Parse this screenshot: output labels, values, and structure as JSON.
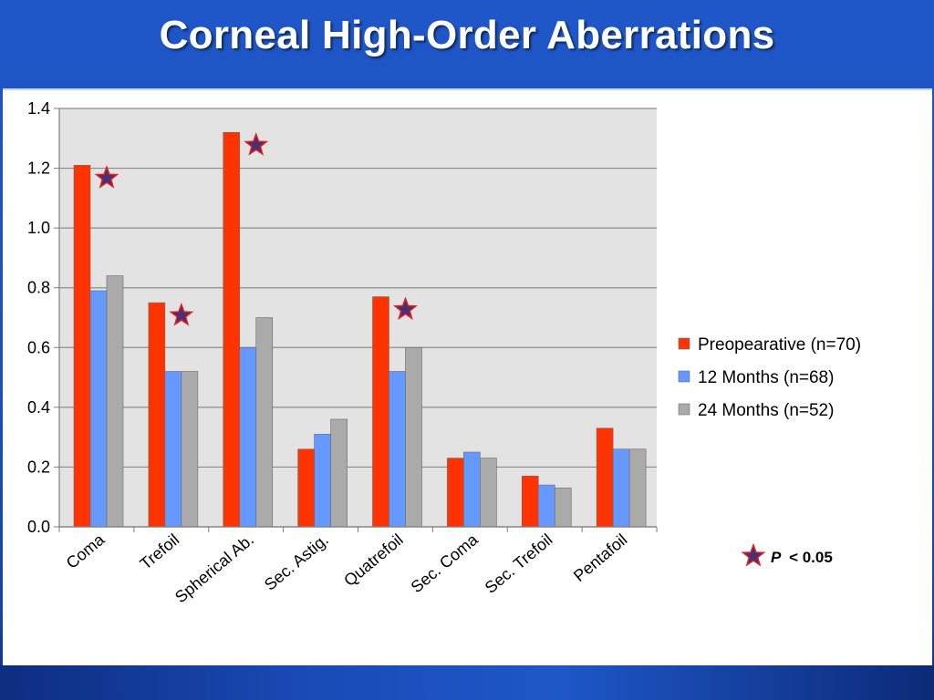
{
  "slide": {
    "title": "Corneal High-Order Aberrations"
  },
  "colors": {
    "preop": "#ff3300",
    "months12": "#6699ff",
    "months24": "#aaaaaa",
    "plot_background": "#e3e3e3",
    "star_fill": "#4a2f73",
    "star_stroke": "#e02020"
  },
  "chart_data": {
    "type": "bar",
    "title": "",
    "xlabel": "",
    "ylabel": "",
    "ylim": [
      0,
      1.4
    ],
    "yticks": [
      "0.0",
      "0.2",
      "0.4",
      "0.6",
      "0.8",
      "1.0",
      "1.2",
      "1.4"
    ],
    "grid": true,
    "legend_position": "right",
    "categories": [
      "Coma",
      "Trefoil",
      "Spherical Ab.",
      "Sec. Astig.",
      "Quatrefoil",
      "Sec. Coma",
      "Sec. Trefoil",
      "Pentafoil"
    ],
    "series": [
      {
        "name": "Preopearative (n=70)",
        "values": [
          1.21,
          0.75,
          1.32,
          0.26,
          0.77,
          0.23,
          0.17,
          0.33
        ]
      },
      {
        "name": "12 Months (n=68)",
        "values": [
          0.79,
          0.52,
          0.6,
          0.31,
          0.52,
          0.25,
          0.14,
          0.26
        ]
      },
      {
        "name": "24 Months (n=52)",
        "values": [
          0.84,
          0.52,
          0.7,
          0.36,
          0.6,
          0.23,
          0.13,
          0.26
        ]
      }
    ],
    "significant_categories": [
      "Coma",
      "Trefoil",
      "Spherical Ab.",
      "Quatrefoil"
    ],
    "significance_note": {
      "p_symbol": "P",
      "text": "< 0.05"
    }
  }
}
